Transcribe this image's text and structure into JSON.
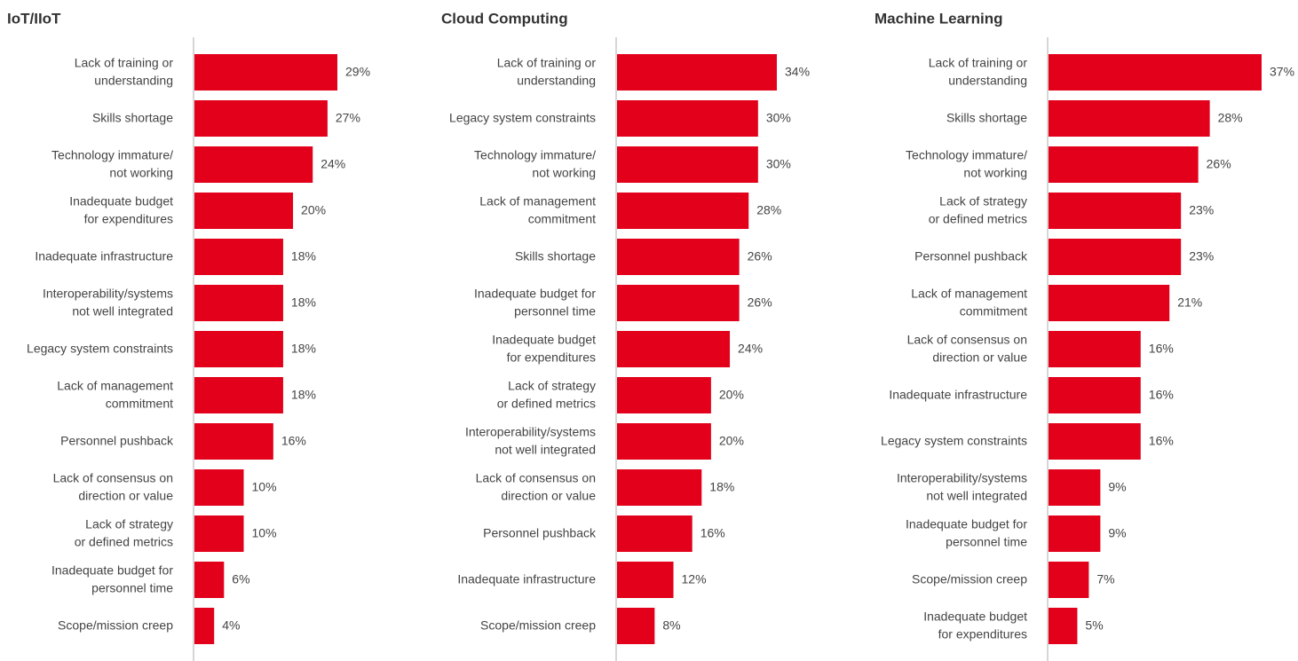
{
  "chart_data": [
    {
      "type": "bar",
      "title": "IoT/IIoT",
      "color": "#e2001a",
      "categories": [
        [
          "Lack of training or",
          "understanding"
        ],
        [
          "Skills shortage"
        ],
        [
          "Technology immature/",
          "not working"
        ],
        [
          "Inadequate budget",
          "for expenditures"
        ],
        [
          "Inadequate infrastructure"
        ],
        [
          "Interoperability/systems",
          "not well integrated"
        ],
        [
          "Legacy system constraints"
        ],
        [
          "Lack of management",
          "commitment"
        ],
        [
          "Personnel pushback"
        ],
        [
          "Lack of consensus on",
          "direction or value"
        ],
        [
          "Lack of strategy",
          "or defined metrics"
        ],
        [
          "Inadequate budget for",
          "personnel time"
        ],
        [
          "Scope/mission creep"
        ]
      ],
      "values": [
        29,
        27,
        24,
        20,
        18,
        18,
        18,
        18,
        16,
        10,
        10,
        6,
        4
      ],
      "value_labels": [
        "29%",
        "27%",
        "24%",
        "20%",
        "18%",
        "18%",
        "18%",
        "18%",
        "16%",
        "10%",
        "10%",
        "6%",
        "4%"
      ]
    },
    {
      "type": "bar",
      "title": "Cloud Computing",
      "color": "#e2001a",
      "categories": [
        [
          "Lack of training or",
          "understanding"
        ],
        [
          "Legacy system constraints"
        ],
        [
          "Technology immature/",
          "not working"
        ],
        [
          "Lack of management",
          "commitment"
        ],
        [
          "Skills shortage"
        ],
        [
          "Inadequate budget for",
          "personnel time"
        ],
        [
          "Inadequate budget",
          "for expenditures"
        ],
        [
          "Lack of strategy",
          "or defined metrics"
        ],
        [
          "Interoperability/systems",
          "not well integrated"
        ],
        [
          "Lack of consensus on",
          "direction or value"
        ],
        [
          "Personnel pushback"
        ],
        [
          "Inadequate infrastructure"
        ],
        [
          "Scope/mission creep"
        ]
      ],
      "values": [
        34,
        30,
        30,
        28,
        26,
        26,
        24,
        20,
        20,
        18,
        16,
        12,
        8
      ],
      "value_labels": [
        "34%",
        "30%",
        "30%",
        "28%",
        "26%",
        "26%",
        "24%",
        "20%",
        "20%",
        "18%",
        "16%",
        "12%",
        "8%"
      ]
    },
    {
      "type": "bar",
      "title": "Machine Learning",
      "color": "#e2001a",
      "categories": [
        [
          "Lack of training or",
          "understanding"
        ],
        [
          "Skills shortage"
        ],
        [
          "Technology immature/",
          "not working"
        ],
        [
          "Lack of strategy",
          "or defined metrics"
        ],
        [
          "Personnel pushback"
        ],
        [
          "Lack of management",
          "commitment"
        ],
        [
          "Lack of consensus on",
          "direction or value"
        ],
        [
          "Inadequate infrastructure"
        ],
        [
          "Legacy system constraints"
        ],
        [
          "Interoperability/systems",
          "not well integrated"
        ],
        [
          "Inadequate budget for",
          "personnel time"
        ],
        [
          "Scope/mission creep"
        ],
        [
          "Inadequate budget",
          "for expenditures"
        ]
      ],
      "values": [
        37,
        28,
        26,
        23,
        23,
        21,
        16,
        16,
        16,
        9,
        9,
        7,
        5
      ],
      "value_labels": [
        "37%",
        "28%",
        "26%",
        "23%",
        "23%",
        "21%",
        "16%",
        "16%",
        "16%",
        "9%",
        "9%",
        "7%",
        "5%"
      ]
    }
  ]
}
